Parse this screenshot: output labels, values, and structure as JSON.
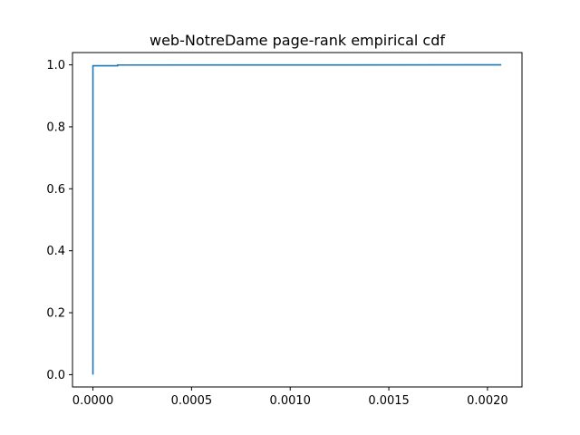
{
  "chart_data": {
    "type": "line",
    "step": true,
    "title": "web-NotreDame page-rank empirical cdf",
    "xlabel": "",
    "ylabel": "",
    "xlim": [
      -0.0001036,
      0.002175
    ],
    "ylim": [
      -0.0397,
      1.0397
    ],
    "grid": false,
    "legend": "none",
    "x_ticks": [
      0.0,
      0.0005,
      0.001,
      0.0015,
      0.002
    ],
    "x_tick_labels": [
      "0.0000",
      "0.0005",
      "0.0010",
      "0.0015",
      "0.0020"
    ],
    "y_ticks": [
      0.0,
      0.2,
      0.4,
      0.6,
      0.8,
      1.0
    ],
    "y_tick_labels": [
      "0.0",
      "0.2",
      "0.4",
      "0.6",
      "0.8",
      "1.0"
    ],
    "series": [
      {
        "color": "#1f77b4",
        "x": [
          0.0,
          0.0,
          0.0,
          0.000125,
          0.000125,
          0.00207
        ],
        "y": [
          0.0,
          0.01,
          0.997,
          0.997,
          0.9995,
          1.0
        ]
      }
    ]
  }
}
